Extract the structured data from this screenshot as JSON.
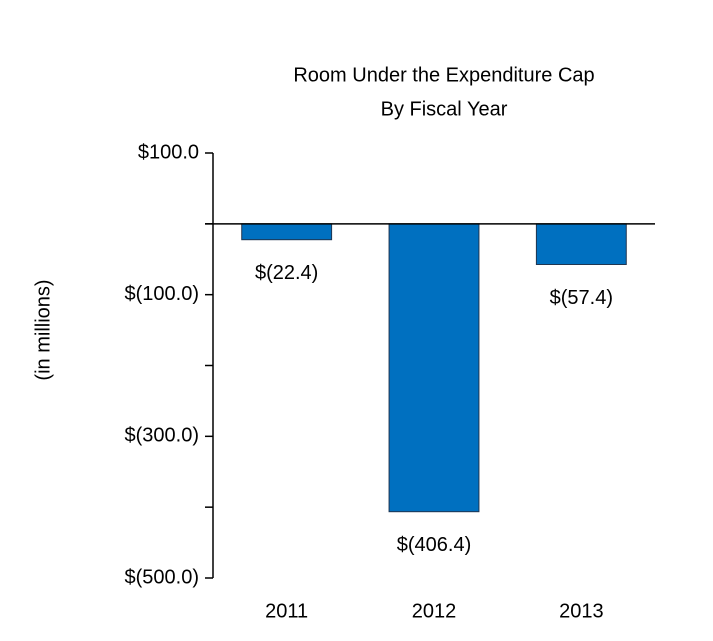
{
  "chart_data": {
    "type": "bar",
    "title": [
      "Room Under the Expenditure Cap",
      "By Fiscal Year"
    ],
    "y_label": "(in millions)",
    "categories": [
      "2011",
      "2012",
      "2013"
    ],
    "values": [
      -22.4,
      -406.4,
      -57.4
    ],
    "value_labels": [
      "$(22.4)",
      "$(406.4)",
      "$(57.4)"
    ],
    "color": "#0070c0",
    "ylim": [
      -500,
      100
    ],
    "yticks": [
      {
        "value": 100,
        "label": "$100.0"
      },
      {
        "value": -100,
        "label": "$(100.0)"
      },
      {
        "value": -300,
        "label": "$(300.0)"
      },
      {
        "value": -500,
        "label": "$(500.0)"
      }
    ],
    "minor_yticks": [
      0,
      -200,
      -400
    ]
  }
}
